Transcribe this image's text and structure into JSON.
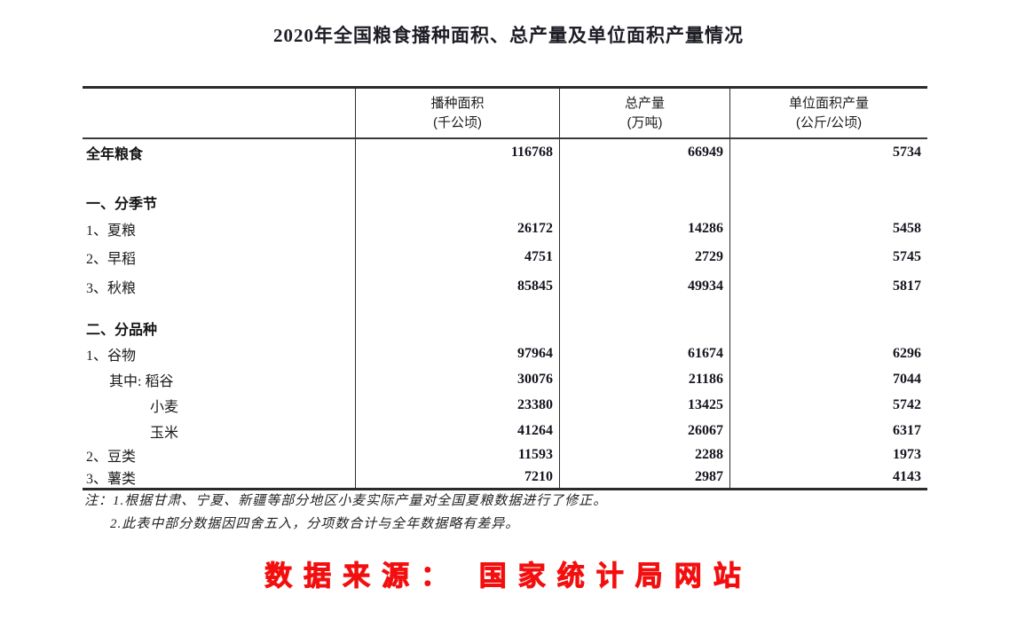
{
  "title": "2020年全国粮食播种面积、总产量及单位面积产量情况",
  "table": {
    "columns": [
      {
        "label": "播种面积",
        "unit": "(千公顷)"
      },
      {
        "label": "总产量",
        "unit": "(万吨)"
      },
      {
        "label": "单位面积产量",
        "unit": "(公斤/公顷)"
      }
    ],
    "rows": [
      {
        "label": "全年粮食",
        "area": "116768",
        "output": "66949",
        "yield": "5734"
      },
      {
        "label": "一、分季节",
        "area": "",
        "output": "",
        "yield": ""
      },
      {
        "label": "1、夏粮",
        "area": "26172",
        "output": "14286",
        "yield": "5458"
      },
      {
        "label": "2、早稻",
        "area": "4751",
        "output": "2729",
        "yield": "5745"
      },
      {
        "label": "3、秋粮",
        "area": "85845",
        "output": "49934",
        "yield": "5817"
      },
      {
        "label": "二、分品种",
        "area": "",
        "output": "",
        "yield": ""
      },
      {
        "label": "1、谷物",
        "area": "97964",
        "output": "61674",
        "yield": "6296"
      },
      {
        "label": "其中: 稻谷",
        "area": "30076",
        "output": "21186",
        "yield": "7044"
      },
      {
        "label": "小麦",
        "area": "23380",
        "output": "13425",
        "yield": "5742"
      },
      {
        "label": "玉米",
        "area": "41264",
        "output": "26067",
        "yield": "6317"
      },
      {
        "label": "2、豆类",
        "area": "11593",
        "output": "2288",
        "yield": "1973"
      },
      {
        "label": "3、薯类",
        "area": "7210",
        "output": "2987",
        "yield": "4143"
      }
    ]
  },
  "notes": {
    "line1": "注：1.根据甘肃、宁夏、新疆等部分地区小麦实际产量对全国夏粮数据进行了修正。",
    "line2": "2.此表中部分数据因四舍五入，分项数合计与全年数据略有差异。"
  },
  "source": {
    "text": "数据来源： 国家统计局网站",
    "color": "#f30f0f"
  }
}
